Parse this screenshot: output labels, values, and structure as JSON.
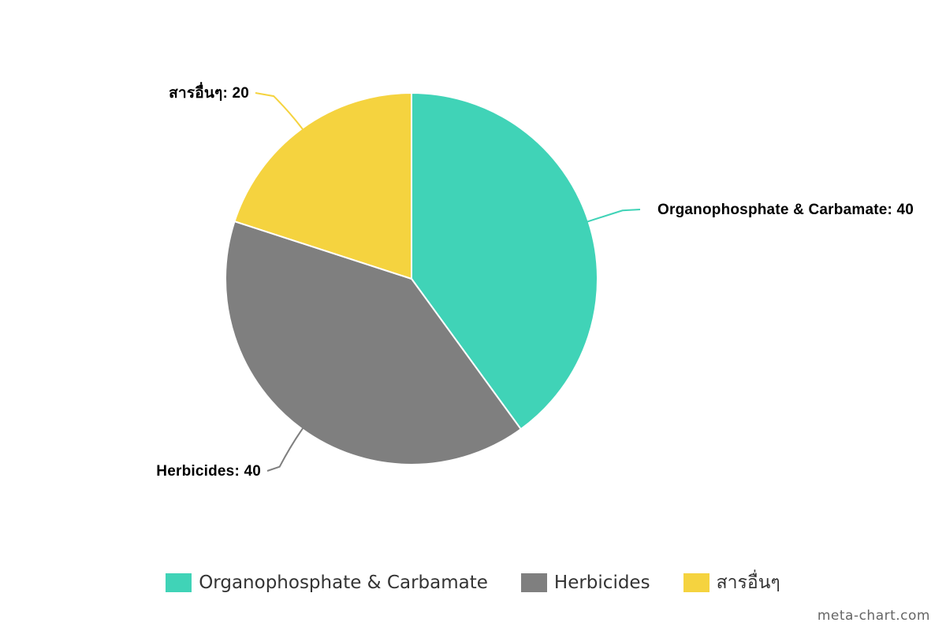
{
  "chart_data": {
    "type": "pie",
    "categories": [
      "Organophosphate & Carbamate",
      "Herbicides",
      "สารอื่นๆ"
    ],
    "values": [
      40,
      40,
      20
    ],
    "colors": [
      "#40d3b7",
      "#7f7f7f",
      "#f5d33f"
    ],
    "slice_labels": [
      "Organophosphate & Carbamate: 40",
      "Herbicides: 40",
      "สารอื่นๆ: 20"
    ],
    "legend_position": "bottom"
  },
  "credit": "meta-chart.com"
}
